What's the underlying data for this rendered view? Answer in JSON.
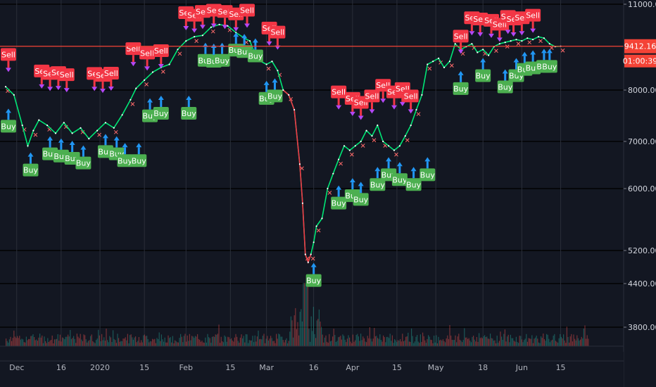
{
  "chart_data": {
    "type": "line",
    "y_axis": {
      "scale": "log",
      "ticks": [
        3800,
        4400,
        5200,
        6000,
        7000,
        8000,
        11000
      ],
      "tick_labels": [
        "3800.00",
        "4400.00",
        "5200.00",
        "6000.00",
        "7000.00",
        "8000.00",
        "11000.00"
      ],
      "ylim": [
        3500,
        11200
      ]
    },
    "x_axis": {
      "tick_labels": [
        "Dec",
        "16",
        "2020",
        "15",
        "Feb",
        "15",
        "Mar",
        "16",
        "Apr",
        "15",
        "May",
        "18",
        "Jun",
        "15"
      ],
      "tick_indices": [
        4,
        20,
        34,
        50,
        65,
        81,
        94,
        111,
        125,
        141,
        155,
        172,
        186,
        200
      ],
      "xlim_index": [
        0,
        210
      ]
    },
    "price_line": {
      "current_price": 9412.16,
      "current_price_label": "9412.16",
      "countdown_label": "01:00:39",
      "color": "#f44336"
    },
    "series": [
      {
        "name": "",
        "color": "#00e676",
        "points": [
          [
            0,
            8100
          ],
          [
            3,
            7900
          ],
          [
            6,
            7300
          ],
          [
            8,
            6900
          ],
          [
            10,
            7200
          ],
          [
            12,
            7400
          ],
          [
            15,
            7300
          ],
          [
            18,
            7150
          ],
          [
            21,
            7350
          ],
          [
            24,
            7150
          ],
          [
            27,
            7250
          ],
          [
            30,
            7050
          ],
          [
            33,
            7200
          ],
          [
            36,
            7350
          ],
          [
            39,
            7250
          ],
          [
            42,
            7500
          ],
          [
            45,
            7800
          ],
          [
            47,
            8050
          ],
          [
            50,
            8300
          ],
          [
            53,
            8550
          ],
          [
            56,
            8700
          ],
          [
            59,
            8800
          ],
          [
            62,
            9300
          ],
          [
            65,
            9600
          ],
          [
            68,
            9750
          ],
          [
            71,
            9800
          ],
          [
            74,
            10100
          ],
          [
            77,
            10200
          ],
          [
            80,
            10150
          ],
          [
            83,
            9900
          ],
          [
            86,
            9700
          ],
          [
            88,
            9600
          ],
          [
            90,
            9100
          ],
          [
            92,
            8900
          ],
          [
            94,
            8800
          ],
          [
            96,
            8900
          ],
          [
            98,
            8600
          ],
          [
            100,
            8000
          ],
          [
            102,
            7900
          ],
          [
            104,
            7600
          ],
          [
            106,
            6500
          ],
          [
            107,
            5800
          ],
          [
            108,
            5100
          ],
          [
            109,
            4900
          ],
          [
            110,
            5100
          ],
          [
            111,
            5300
          ],
          [
            112,
            5500
          ],
          [
            114,
            5600
          ],
          [
            116,
            6000
          ],
          [
            118,
            6300
          ],
          [
            120,
            6600
          ],
          [
            122,
            6900
          ],
          [
            124,
            6800
          ],
          [
            126,
            6900
          ],
          [
            128,
            7000
          ],
          [
            130,
            7200
          ],
          [
            132,
            7100
          ],
          [
            134,
            7300
          ],
          [
            136,
            7000
          ],
          [
            138,
            6900
          ],
          [
            140,
            6800
          ],
          [
            142,
            6900
          ],
          [
            144,
            7100
          ],
          [
            146,
            7300
          ],
          [
            148,
            7600
          ],
          [
            150,
            7900
          ],
          [
            152,
            8800
          ],
          [
            154,
            8900
          ],
          [
            156,
            9000
          ],
          [
            158,
            8700
          ],
          [
            160,
            8900
          ],
          [
            162,
            9500
          ],
          [
            164,
            9300
          ],
          [
            166,
            9400
          ],
          [
            168,
            9500
          ],
          [
            170,
            9200
          ],
          [
            172,
            9300
          ],
          [
            174,
            9100
          ],
          [
            176,
            9400
          ],
          [
            178,
            9500
          ],
          [
            180,
            9550
          ],
          [
            182,
            9600
          ],
          [
            184,
            9650
          ],
          [
            186,
            9600
          ],
          [
            188,
            9700
          ],
          [
            190,
            9650
          ],
          [
            192,
            9750
          ],
          [
            194,
            9700
          ],
          [
            196,
            9500
          ],
          [
            198,
            9400
          ],
          [
            200,
            9412
          ]
        ]
      }
    ],
    "signals": {
      "sell": [
        [
          1,
          9250
        ],
        [
          13,
          8700
        ],
        [
          16,
          8620
        ],
        [
          19,
          8650
        ],
        [
          22,
          8580
        ],
        [
          32,
          8620
        ],
        [
          35,
          8560
        ],
        [
          38,
          8630
        ],
        [
          46,
          9450
        ],
        [
          51,
          9300
        ],
        [
          56,
          9380
        ],
        [
          65,
          10800
        ],
        [
          68,
          10700
        ],
        [
          71,
          10850
        ],
        [
          75,
          10900
        ],
        [
          79,
          10850
        ],
        [
          83,
          10750
        ],
        [
          87,
          10900
        ],
        [
          95,
          10200
        ],
        [
          98,
          10050
        ],
        [
          120,
          8050
        ],
        [
          125,
          7900
        ],
        [
          128,
          7820
        ],
        [
          132,
          7950
        ],
        [
          136,
          8250
        ],
        [
          140,
          8050
        ],
        [
          143,
          8150
        ],
        [
          146,
          7950
        ],
        [
          164,
          9900
        ],
        [
          168,
          10600
        ],
        [
          171,
          10550
        ],
        [
          175,
          10500
        ],
        [
          178,
          10350
        ],
        [
          181,
          10650
        ],
        [
          183,
          10550
        ],
        [
          186,
          10600
        ],
        [
          190,
          10700
        ]
      ],
      "buy": [
        [
          1,
          7350
        ],
        [
          9,
          6450
        ],
        [
          16,
          6800
        ],
        [
          20,
          6750
        ],
        [
          24,
          6700
        ],
        [
          28,
          6600
        ],
        [
          36,
          6850
        ],
        [
          40,
          6800
        ],
        [
          43,
          6650
        ],
        [
          48,
          6650
        ],
        [
          52,
          7550
        ],
        [
          56,
          7600
        ],
        [
          66,
          7600
        ],
        [
          72,
          9050
        ],
        [
          75,
          9020
        ],
        [
          78,
          9050
        ],
        [
          83,
          9400
        ],
        [
          86,
          9350
        ],
        [
          90,
          9200
        ],
        [
          94,
          7900
        ],
        [
          97,
          7950
        ],
        [
          111,
          4550
        ],
        [
          120,
          5850
        ],
        [
          125,
          5950
        ],
        [
          128,
          5900
        ],
        [
          134,
          6150
        ],
        [
          138,
          6350
        ],
        [
          142,
          6250
        ],
        [
          147,
          6150
        ],
        [
          152,
          6350
        ],
        [
          164,
          8150
        ],
        [
          172,
          8550
        ],
        [
          180,
          8200
        ],
        [
          184,
          8550
        ],
        [
          187,
          8750
        ],
        [
          190,
          8800
        ],
        [
          194,
          8850
        ],
        [
          196,
          8850
        ]
      ],
      "sell_label": "Sell",
      "buy_label": "Buy",
      "sell_color": "#f23645",
      "buy_color": "#4caf50"
    },
    "volume": {
      "color_up": "#26a69a",
      "color_down": "#ef5350",
      "spike_index": 108
    }
  }
}
